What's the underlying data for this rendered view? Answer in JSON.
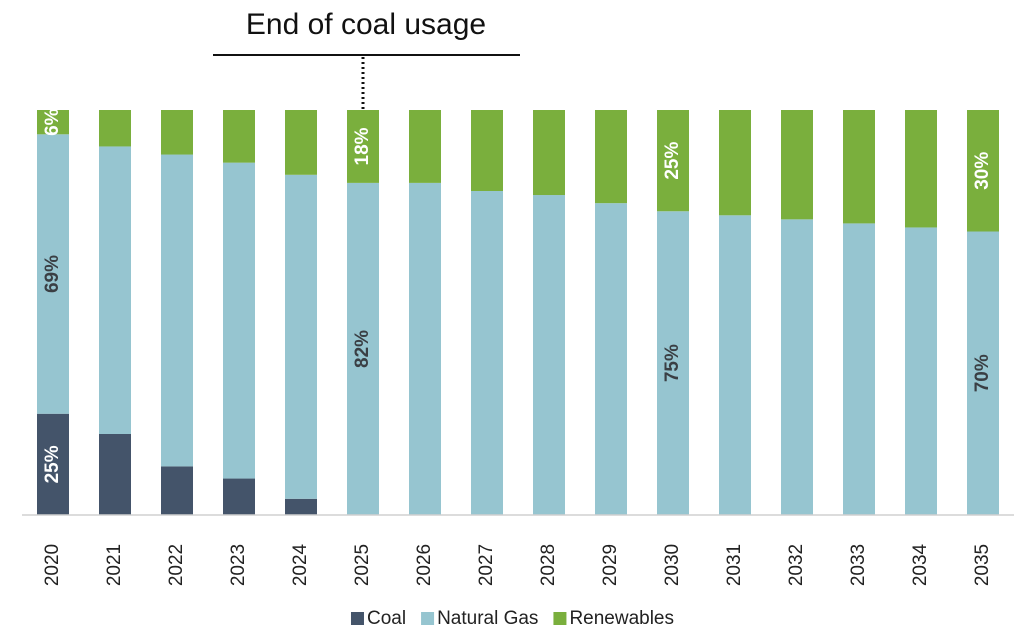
{
  "chart_data": {
    "type": "stacked_bar",
    "annotation": "End of coal usage",
    "annotation_category": "2025",
    "categories": [
      "2020",
      "2021",
      "2022",
      "2023",
      "2024",
      "2025",
      "2026",
      "2027",
      "2028",
      "2029",
      "2030",
      "2031",
      "2032",
      "2033",
      "2034",
      "2035"
    ],
    "ylim": [
      0,
      100
    ],
    "legend": "bottom",
    "series": [
      {
        "name": "Coal",
        "color": "#44546a",
        "label_color": "#ffffff",
        "values": [
          25,
          20,
          12,
          9,
          4,
          0,
          0,
          0,
          0,
          0,
          0,
          0,
          0,
          0,
          0,
          0
        ],
        "value_labels": [
          "25%",
          null,
          null,
          null,
          null,
          null,
          null,
          null,
          null,
          null,
          null,
          null,
          null,
          null,
          null,
          null
        ]
      },
      {
        "name": "Natural Gas",
        "color": "#96c5d0",
        "label_color": "#3a3f44",
        "values": [
          69,
          71,
          77,
          78,
          80,
          82,
          82,
          80,
          79,
          77,
          75,
          74,
          73,
          72,
          71,
          70
        ],
        "value_labels": [
          "69%",
          null,
          null,
          null,
          null,
          "82%",
          null,
          null,
          null,
          null,
          "75%",
          null,
          null,
          null,
          null,
          "70%"
        ]
      },
      {
        "name": "Renewables",
        "color": "#7aaf3d",
        "label_color": "#ffffff",
        "values": [
          6,
          9,
          11,
          13,
          16,
          18,
          18,
          20,
          21,
          23,
          25,
          26,
          27,
          28,
          29,
          30
        ],
        "value_labels": [
          "6%",
          null,
          null,
          null,
          null,
          "18%",
          null,
          null,
          null,
          null,
          "25%",
          null,
          null,
          null,
          null,
          "30%"
        ]
      }
    ]
  }
}
